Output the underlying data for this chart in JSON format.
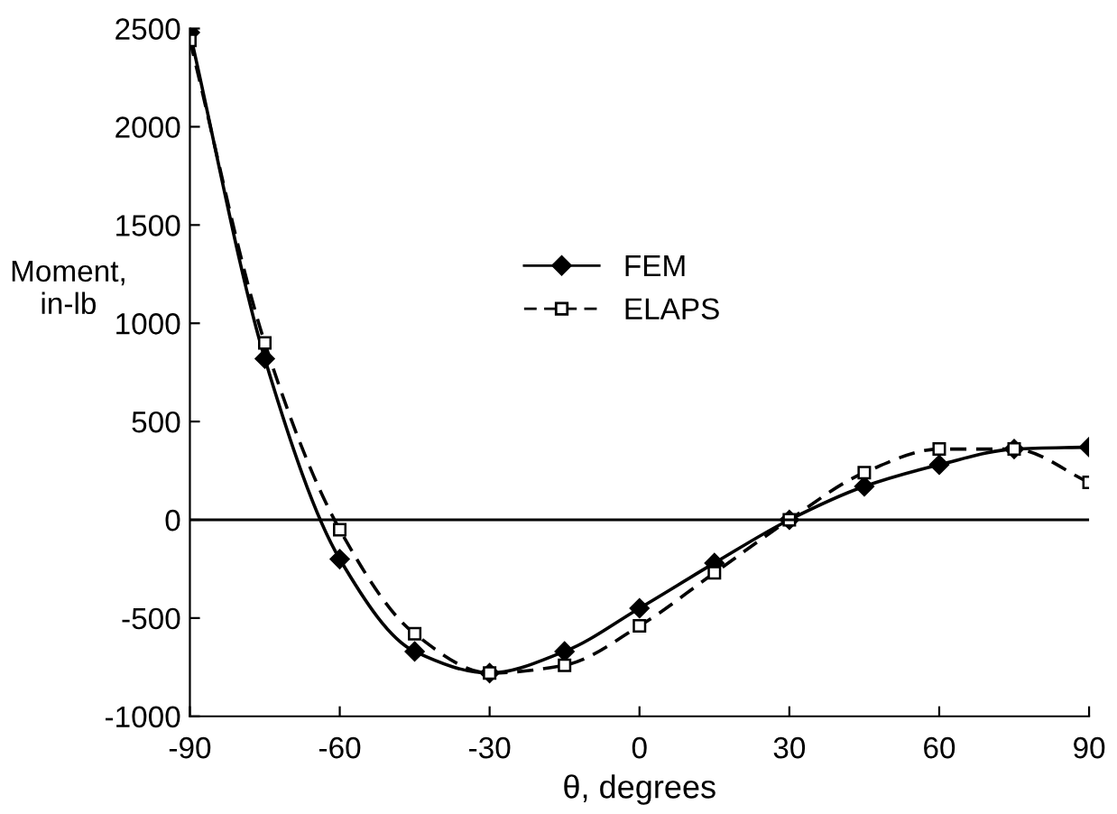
{
  "chart_data": {
    "type": "line",
    "xlabel": "θ, degrees",
    "ylabel": "Moment,\nin-lb",
    "x": [
      -90,
      -75,
      -60,
      -45,
      -30,
      -15,
      0,
      15,
      30,
      45,
      60,
      75,
      90
    ],
    "series": [
      {
        "name": "FEM",
        "color": "#000000",
        "marker": "diamond",
        "line_style": "solid",
        "values": [
          2480,
          820,
          -200,
          -670,
          -780,
          -670,
          -450,
          -220,
          0,
          170,
          280,
          360,
          370
        ]
      },
      {
        "name": "ELAPS",
        "color": "#000000",
        "marker": "square",
        "line_style": "dashed",
        "values": [
          2440,
          900,
          -50,
          -580,
          -780,
          -740,
          -540,
          -270,
          0,
          240,
          360,
          360,
          190
        ]
      }
    ],
    "xlim": [
      -90,
      90
    ],
    "xticks": [
      -90,
      -60,
      -30,
      0,
      30,
      60,
      90
    ],
    "ylim": [
      -1000,
      2500
    ],
    "yticks": [
      -1000,
      -500,
      0,
      500,
      1000,
      1500,
      2000,
      2500
    ],
    "ref_lines": [
      {
        "axis": "y",
        "value": 0
      }
    ],
    "grid": false,
    "legend": "right"
  }
}
